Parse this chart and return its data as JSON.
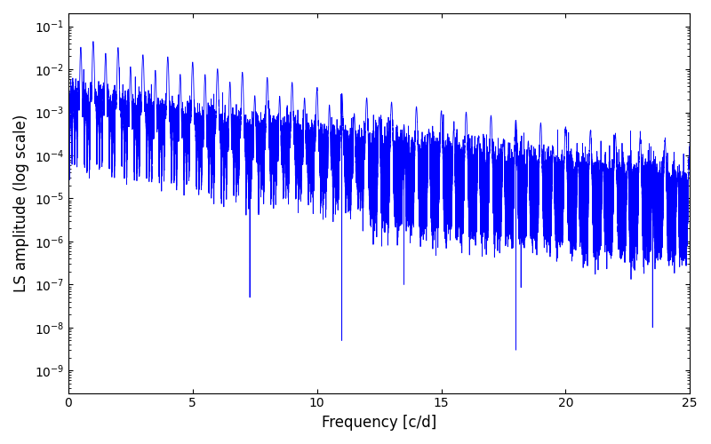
{
  "xlabel": "Frequency [c/d]",
  "ylabel": "LS amplitude (log scale)",
  "xlim": [
    0,
    25
  ],
  "ylim": [
    3e-10,
    0.2
  ],
  "line_color": "#0000ff",
  "line_width": 0.6,
  "figsize": [
    8.0,
    5.0
  ],
  "dpi": 100,
  "freq_max": 25.0,
  "n_points": 80000,
  "seed": 77
}
